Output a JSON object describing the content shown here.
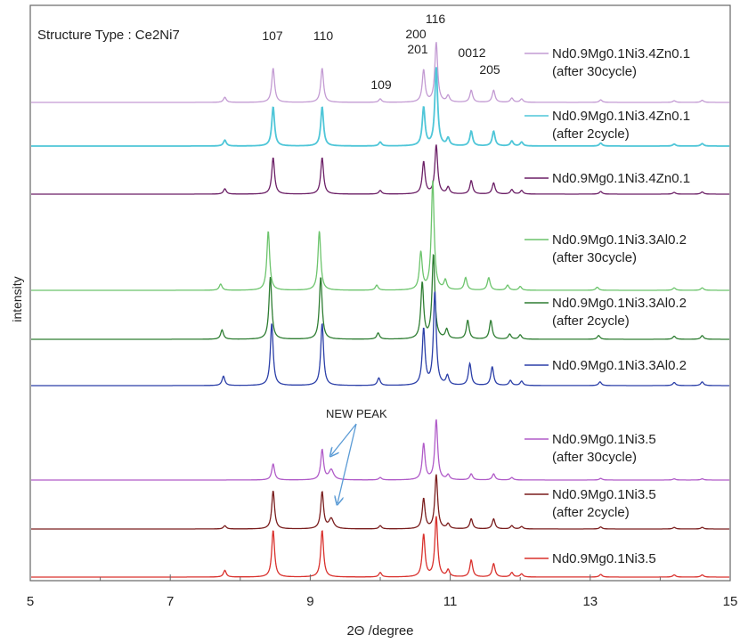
{
  "chart_data": {
    "type": "line",
    "title": "Structure Type : Ce2Ni7",
    "xlabel": "2Θ /degree",
    "ylabel": "intensity",
    "xlim": [
      5,
      15
    ],
    "x_ticks": [
      "5",
      "7",
      "9",
      "11",
      "13",
      "15"
    ],
    "grid": false,
    "legend_placement": "right, next to each trace",
    "annotation": {
      "text": "NEW PEAK"
    },
    "peak_labels": [
      {
        "text": "107",
        "two_theta": 8.47
      },
      {
        "text": "110",
        "two_theta": 9.17
      },
      {
        "text": "109",
        "two_theta": 10.0
      },
      {
        "text": "200",
        "two_theta": 10.6
      },
      {
        "text": "201",
        "two_theta": 10.6
      },
      {
        "text": "116",
        "two_theta": 10.8
      },
      {
        "text": "0012",
        "two_theta": 11.3
      },
      {
        "text": "205",
        "two_theta": 11.6
      }
    ],
    "series": [
      {
        "name": "Nd0.9Mg0.1Ni3.4Zn0.1",
        "sub": "(after 30cycle)",
        "color": "#c39bd3",
        "new_peak": false,
        "peaks": [
          [
            7.78,
            0.12
          ],
          [
            8.47,
            0.8
          ],
          [
            9.17,
            0.8
          ],
          [
            10.0,
            0.08
          ],
          [
            10.62,
            0.75
          ],
          [
            10.8,
            1.4
          ],
          [
            10.97,
            0.15
          ],
          [
            11.3,
            0.28
          ],
          [
            11.62,
            0.28
          ],
          [
            11.88,
            0.1
          ],
          [
            12.02,
            0.08
          ],
          [
            13.15,
            0.06
          ],
          [
            14.2,
            0.04
          ],
          [
            14.6,
            0.05
          ]
        ]
      },
      {
        "name": "Nd0.9Mg0.1Ni3.4Zn0.1",
        "sub": "(after 2cycle)",
        "color": "#4fc6d8",
        "new_peak": false,
        "peaks": [
          [
            7.78,
            0.12
          ],
          [
            8.47,
            0.8
          ],
          [
            9.17,
            0.8
          ],
          [
            10.0,
            0.08
          ],
          [
            10.62,
            0.78
          ],
          [
            10.8,
            1.6
          ],
          [
            10.97,
            0.15
          ],
          [
            11.3,
            0.3
          ],
          [
            11.62,
            0.3
          ],
          [
            11.88,
            0.1
          ],
          [
            12.02,
            0.08
          ],
          [
            13.15,
            0.06
          ],
          [
            14.2,
            0.04
          ],
          [
            14.6,
            0.05
          ]
        ]
      },
      {
        "name": "Nd0.9Mg0.1Ni3.4Zn0.1",
        "sub": "",
        "color": "#6b1f66",
        "new_peak": false,
        "peaks": [
          [
            7.78,
            0.12
          ],
          [
            8.47,
            0.82
          ],
          [
            9.17,
            0.82
          ],
          [
            10.0,
            0.08
          ],
          [
            10.62,
            0.72
          ],
          [
            10.8,
            1.1
          ],
          [
            10.97,
            0.15
          ],
          [
            11.3,
            0.3
          ],
          [
            11.62,
            0.25
          ],
          [
            11.88,
            0.1
          ],
          [
            12.02,
            0.08
          ],
          [
            13.15,
            0.06
          ],
          [
            14.2,
            0.04
          ],
          [
            14.6,
            0.05
          ]
        ]
      },
      {
        "name": "Nd0.9Mg0.1Ni3.3Al0.2",
        "sub": "(after 30cycle)",
        "color": "#6cc46c",
        "new_peak": false,
        "peaks": [
          [
            7.72,
            0.1
          ],
          [
            8.4,
            0.95
          ],
          [
            9.13,
            0.95
          ],
          [
            9.95,
            0.08
          ],
          [
            10.58,
            0.6
          ],
          [
            10.75,
            1.75
          ],
          [
            10.93,
            0.15
          ],
          [
            11.22,
            0.2
          ],
          [
            11.55,
            0.2
          ],
          [
            11.82,
            0.08
          ],
          [
            12.0,
            0.06
          ],
          [
            13.1,
            0.05
          ],
          [
            14.2,
            0.04
          ],
          [
            14.6,
            0.04
          ]
        ]
      },
      {
        "name": "Nd0.9Mg0.1Ni3.3Al0.2",
        "sub": "(after 2cycle)",
        "color": "#2e7d32",
        "new_peak": false,
        "peaks": [
          [
            7.74,
            0.15
          ],
          [
            8.43,
            1.0
          ],
          [
            9.15,
            1.0
          ],
          [
            9.97,
            0.1
          ],
          [
            10.6,
            0.9
          ],
          [
            10.76,
            1.35
          ],
          [
            10.95,
            0.15
          ],
          [
            11.25,
            0.3
          ],
          [
            11.58,
            0.3
          ],
          [
            11.85,
            0.08
          ],
          [
            12.0,
            0.07
          ],
          [
            13.12,
            0.06
          ],
          [
            14.2,
            0.05
          ],
          [
            14.6,
            0.06
          ]
        ]
      },
      {
        "name": "Nd0.9Mg0.1Ni3.3Al0.2",
        "sub": "",
        "color": "#2b3fa8",
        "new_peak": false,
        "peaks": [
          [
            7.76,
            0.15
          ],
          [
            8.45,
            1.0
          ],
          [
            9.17,
            1.0
          ],
          [
            9.98,
            0.12
          ],
          [
            10.62,
            0.9
          ],
          [
            10.78,
            1.5
          ],
          [
            10.96,
            0.15
          ],
          [
            11.28,
            0.35
          ],
          [
            11.6,
            0.3
          ],
          [
            11.86,
            0.08
          ],
          [
            12.02,
            0.07
          ],
          [
            13.14,
            0.06
          ],
          [
            14.2,
            0.05
          ],
          [
            14.6,
            0.06
          ]
        ]
      },
      {
        "name": "Nd0.9Mg0.1Ni3.5",
        "sub": "(after 30cycle)",
        "color": "#b05bc8",
        "new_peak": true,
        "peaks": [
          [
            8.47,
            0.4
          ],
          [
            9.17,
            0.75
          ],
          [
            10.0,
            0.06
          ],
          [
            10.62,
            0.9
          ],
          [
            10.8,
            1.5
          ],
          [
            10.97,
            0.12
          ],
          [
            11.3,
            0.15
          ],
          [
            11.62,
            0.15
          ],
          [
            11.88,
            0.06
          ],
          [
            13.15,
            0.04
          ],
          [
            14.2,
            0.03
          ],
          [
            14.6,
            0.03
          ]
        ]
      },
      {
        "name": "Nd0.9Mg0.1Ni3.5",
        "sub": "(after 2cycle)",
        "color": "#7a1d1d",
        "new_peak": true,
        "peaks": [
          [
            7.78,
            0.08
          ],
          [
            8.47,
            0.95
          ],
          [
            9.17,
            0.92
          ],
          [
            10.0,
            0.08
          ],
          [
            10.62,
            0.75
          ],
          [
            10.8,
            1.35
          ],
          [
            10.97,
            0.12
          ],
          [
            11.3,
            0.25
          ],
          [
            11.62,
            0.25
          ],
          [
            11.88,
            0.08
          ],
          [
            12.02,
            0.06
          ],
          [
            13.15,
            0.05
          ],
          [
            14.2,
            0.04
          ],
          [
            14.6,
            0.04
          ]
        ]
      },
      {
        "name": "Nd0.9Mg0.1Ni3.5",
        "sub": "",
        "color": "#d9302c",
        "new_peak": false,
        "peaks": [
          [
            7.78,
            0.15
          ],
          [
            8.47,
            1.05
          ],
          [
            9.17,
            1.05
          ],
          [
            10.0,
            0.1
          ],
          [
            10.62,
            0.95
          ],
          [
            10.8,
            1.35
          ],
          [
            10.97,
            0.15
          ],
          [
            11.3,
            0.38
          ],
          [
            11.62,
            0.3
          ],
          [
            11.88,
            0.1
          ],
          [
            12.02,
            0.07
          ],
          [
            13.15,
            0.06
          ],
          [
            14.2,
            0.05
          ],
          [
            14.6,
            0.05
          ]
        ]
      }
    ]
  }
}
